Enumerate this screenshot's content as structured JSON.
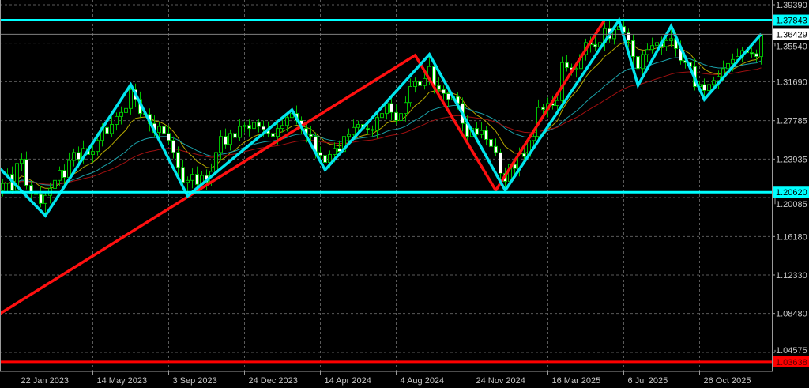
{
  "chart_data": {
    "type": "candlestick",
    "price_axis": {
      "range": [
        1.03,
        1.3985
      ],
      "tick_labels": [
        "1.39390",
        "1.35540",
        "1.31690",
        "1.27785",
        "1.23935",
        "1.20085",
        "1.16180",
        "1.12330",
        "1.08480",
        "1.04575"
      ],
      "grid": true
    },
    "time_axis": {
      "tick_labels": [
        {
          "label": "22 Jan 2023",
          "date": "2023-01-22"
        },
        {
          "label": "14 May 2023",
          "date": "2023-05-14"
        },
        {
          "label": "3 Sep 2023",
          "date": "2023-09-03"
        },
        {
          "label": "24 Dec 2023",
          "date": "2023-12-24"
        },
        {
          "label": "14 Apr 2024",
          "date": "2024-04-14"
        },
        {
          "label": "4 Aug 2024",
          "date": "2024-08-04"
        },
        {
          "label": "24 Nov 2024",
          "date": "2024-11-24"
        },
        {
          "label": "16 Mar 2025",
          "date": "2025-03-16"
        },
        {
          "label": "6 Jul 2025",
          "date": "2025-07-06"
        },
        {
          "label": "26 Oct 2025",
          "date": "2025-10-26"
        }
      ],
      "grid": true
    },
    "candles": {
      "start": "2023-01-01",
      "interval_days": 7,
      "first_open": 1.208,
      "close": [
        1.215,
        1.224,
        1.208,
        1.235,
        1.239,
        1.213,
        1.205,
        1.204,
        1.195,
        1.203,
        1.21,
        1.218,
        1.228,
        1.221,
        1.238,
        1.246,
        1.239,
        1.25,
        1.244,
        1.247,
        1.258,
        1.271,
        1.265,
        1.274,
        1.282,
        1.286,
        1.29,
        1.309,
        1.299,
        1.285,
        1.284,
        1.275,
        1.266,
        1.272,
        1.265,
        1.258,
        1.246,
        1.231,
        1.216,
        1.218,
        1.224,
        1.214,
        1.223,
        1.216,
        1.227,
        1.246,
        1.262,
        1.254,
        1.265,
        1.261,
        1.272,
        1.273,
        1.27,
        1.276,
        1.272,
        1.269,
        1.265,
        1.262,
        1.27,
        1.273,
        1.281,
        1.285,
        1.278,
        1.27,
        1.264,
        1.262,
        1.246,
        1.243,
        1.236,
        1.244,
        1.25,
        1.247,
        1.262,
        1.264,
        1.271,
        1.274,
        1.27,
        1.269,
        1.268,
        1.281,
        1.285,
        1.295,
        1.286,
        1.278,
        1.285,
        1.296,
        1.312,
        1.317,
        1.313,
        1.32,
        1.332,
        1.313,
        1.309,
        1.305,
        1.299,
        1.302,
        1.295,
        1.275,
        1.262,
        1.27,
        1.264,
        1.268,
        1.259,
        1.252,
        1.246,
        1.225,
        1.217,
        1.234,
        1.23,
        1.245,
        1.242,
        1.258,
        1.262,
        1.291,
        1.289,
        1.295,
        1.293,
        1.298,
        1.336,
        1.331,
        1.329,
        1.33,
        1.344,
        1.356,
        1.354,
        1.352,
        1.356,
        1.37,
        1.36,
        1.369,
        1.372,
        1.366,
        1.358,
        1.342,
        1.33,
        1.344,
        1.349,
        1.353,
        1.356,
        1.352,
        1.358,
        1.36,
        1.35,
        1.338,
        1.336,
        1.332,
        1.312,
        1.314,
        1.308,
        1.314,
        1.318,
        1.322,
        1.33,
        1.335,
        1.339,
        1.342,
        1.348,
        1.346,
        1.345,
        1.342,
        1.3643
      ]
    },
    "zigzag": [
      {
        "date": "2022-12-25",
        "price": 1.232
      },
      {
        "date": "2023-03-05",
        "price": 1.1826
      },
      {
        "date": "2023-07-09",
        "price": 1.314
      },
      {
        "date": "2023-10-01",
        "price": 1.2024
      },
      {
        "date": "2024-03-03",
        "price": 1.2887
      },
      {
        "date": "2024-04-21",
        "price": 1.2285
      },
      {
        "date": "2024-09-22",
        "price": 1.3441
      },
      {
        "date": "2025-01-12",
        "price": 1.208
      },
      {
        "date": "2025-06-29",
        "price": 1.3784
      },
      {
        "date": "2025-07-27",
        "price": 1.3132
      },
      {
        "date": "2025-09-14",
        "price": 1.3725
      },
      {
        "date": "2025-11-02",
        "price": 1.299
      },
      {
        "date": "2026-01-25",
        "price": 1.3646
      }
    ],
    "red_trend": [
      {
        "date": "2022-12-25",
        "price": 1.0833
      },
      {
        "date": "2024-09-01",
        "price": 1.3433
      },
      {
        "date": "2024-12-29",
        "price": 1.208
      },
      {
        "date": "2025-06-08",
        "price": 1.3789
      }
    ],
    "levels": [
      {
        "label": "1.37843",
        "price": 1.37843,
        "color": "#00ffff",
        "text_color": "#000000",
        "width": 3
      },
      {
        "label": "1.20620",
        "price": 1.2062,
        "color": "#00ffff",
        "text_color": "#000000",
        "width": 3
      },
      {
        "label": "1.03638",
        "price": 1.03638,
        "color": "#ff0000",
        "text_color": "#5a0000",
        "width": 3
      },
      {
        "label": "1.36429",
        "price": 1.36429,
        "color": "#808080",
        "label_bg": "#ffffff",
        "text_color": "#000000",
        "width": 1
      }
    ],
    "colors": {
      "background": "#000000",
      "candle_outline": "#00c000",
      "bull_fill": "#000000",
      "bear_fill": "#ffffff",
      "zigzag": "#00e5ee",
      "red_trend": "#ff1010",
      "ma_fast": "#b4a800",
      "ma_mid": "#1aa0a8",
      "ma_slow": "#a01010",
      "grid": "#5a5a5a",
      "axis_text": "#c8c8c8"
    }
  }
}
